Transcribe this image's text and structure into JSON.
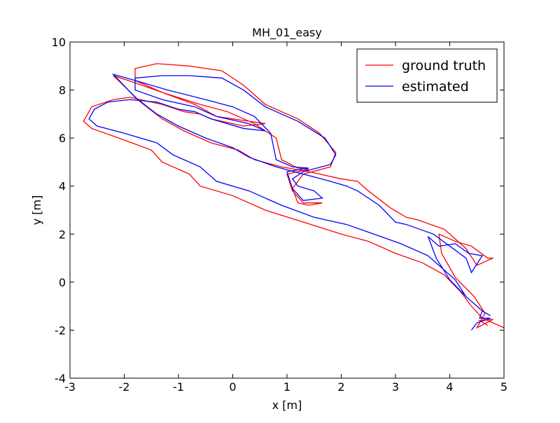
{
  "chart_data": {
    "type": "line",
    "title": "MH_01_easy",
    "x_label": "x [m]",
    "y_label": "y [m]",
    "xlim": [
      -3,
      5
    ],
    "xticks": [
      -3,
      -2,
      -1,
      0,
      1,
      2,
      3,
      4,
      5
    ],
    "ylim": [
      -4,
      10
    ],
    "yticks": [
      -4,
      -2,
      0,
      2,
      4,
      6,
      8,
      10
    ],
    "legend": "upper right",
    "series": [
      {
        "name": "ground truth",
        "color": "#ff0000",
        "x": [
          4.7,
          4.55,
          4.8,
          4.5,
          4.65,
          4.45,
          4.1,
          3.85,
          3.8,
          4.1,
          4.4,
          4.7,
          4.8,
          4.5,
          4.3,
          3.9,
          3.4,
          3.2,
          2.9,
          2.5,
          2.3,
          2.0,
          1.4,
          0.9,
          0.4,
          0.1,
          -0.4,
          -0.9,
          -1.3,
          -1.7,
          -2.2,
          -1.8,
          -1.3,
          -0.6,
          -0.1,
          0.4,
          0.8,
          0.9,
          1.2,
          1.4,
          1.0,
          1.1,
          1.3,
          1.65,
          1.4,
          1.2,
          1.1,
          1.3,
          1.8,
          1.9,
          1.6,
          1.2,
          0.6,
          0.2,
          -0.2,
          -0.8,
          -1.4,
          -1.8,
          -1.8,
          -1.3,
          -0.7,
          -0.3,
          0.3,
          0.6,
          0.2,
          -0.4,
          -0.6,
          -0.9,
          -1.3,
          -1.9,
          -2.2,
          -2.6,
          -2.75,
          -2.6,
          -2.1,
          -1.5,
          -1.3,
          -0.8,
          -0.6,
          0.0,
          0.6,
          1.3,
          2.0,
          2.5,
          3.0,
          3.5,
          3.9,
          4.2,
          4.4,
          4.6,
          5.0
        ],
        "values": [
          -1.8,
          -1.6,
          -1.55,
          -1.9,
          -1.3,
          -0.6,
          0.2,
          1.2,
          2.0,
          1.7,
          1.5,
          1.0,
          1.0,
          0.7,
          1.4,
          2.2,
          2.6,
          2.7,
          3.1,
          3.8,
          4.2,
          4.3,
          4.6,
          4.8,
          5.1,
          5.5,
          5.8,
          6.3,
          6.8,
          7.5,
          8.6,
          8.3,
          7.9,
          7.4,
          7.1,
          6.6,
          6.0,
          5.1,
          4.75,
          4.7,
          4.5,
          3.8,
          3.3,
          3.3,
          3.2,
          3.3,
          3.9,
          4.5,
          4.8,
          5.4,
          6.2,
          6.8,
          7.4,
          8.2,
          8.8,
          9.0,
          9.1,
          8.9,
          8.4,
          7.9,
          7.4,
          6.9,
          6.7,
          6.6,
          6.5,
          6.8,
          7.0,
          7.1,
          7.4,
          7.7,
          7.6,
          7.3,
          6.7,
          6.4,
          6.0,
          5.5,
          5.0,
          4.5,
          4.0,
          3.6,
          3.0,
          2.5,
          2.0,
          1.7,
          1.2,
          0.8,
          0.3,
          -0.4,
          -1.0,
          -1.5,
          -1.9
        ]
      },
      {
        "name": "estimated",
        "color": "#0000ff",
        "x": [
          4.4,
          4.5,
          4.75,
          4.55,
          4.6,
          4.3,
          4.0,
          3.75,
          3.6,
          3.8,
          4.1,
          4.35,
          4.6,
          4.4,
          4.3,
          3.7,
          3.2,
          3.0,
          2.7,
          2.3,
          2.1,
          1.8,
          1.3,
          0.8,
          0.3,
          0.0,
          -0.5,
          -1.0,
          -1.4,
          -1.8,
          -2.2,
          -1.8,
          -1.2,
          -0.5,
          0.0,
          0.4,
          0.7,
          0.8,
          1.1,
          1.4,
          1.0,
          1.1,
          1.3,
          1.65,
          1.5,
          1.2,
          1.1,
          1.3,
          1.8,
          1.9,
          1.7,
          1.2,
          0.6,
          0.2,
          -0.2,
          -0.8,
          -1.3,
          -1.8,
          -1.8,
          -1.3,
          -0.7,
          -0.3,
          0.3,
          0.6,
          0.2,
          -0.4,
          -0.7,
          -1.0,
          -1.4,
          -1.9,
          -2.3,
          -2.55,
          -2.65,
          -2.5,
          -2.0,
          -1.4,
          -1.1,
          -0.6,
          -0.3,
          0.3,
          0.9,
          1.5,
          2.1,
          2.6,
          3.1,
          3.6,
          3.9,
          4.1,
          4.3,
          4.6,
          4.75
        ],
        "values": [
          -2.0,
          -1.7,
          -1.5,
          -1.5,
          -1.2,
          -0.6,
          0.1,
          1.0,
          1.9,
          1.5,
          1.6,
          1.2,
          1.1,
          0.4,
          1.0,
          2.0,
          2.4,
          2.5,
          3.2,
          3.8,
          4.0,
          4.2,
          4.5,
          4.8,
          5.2,
          5.6,
          6.0,
          6.5,
          7.0,
          7.7,
          8.65,
          8.4,
          8.0,
          7.6,
          7.3,
          6.9,
          6.2,
          5.1,
          4.8,
          4.75,
          4.6,
          3.9,
          3.4,
          3.5,
          3.8,
          4.0,
          4.3,
          4.6,
          4.9,
          5.3,
          6.0,
          6.7,
          7.3,
          8.0,
          8.5,
          8.6,
          8.6,
          8.5,
          8.0,
          7.6,
          7.3,
          6.9,
          6.6,
          6.3,
          6.4,
          6.8,
          7.1,
          7.2,
          7.5,
          7.6,
          7.5,
          7.2,
          6.8,
          6.5,
          6.2,
          5.8,
          5.3,
          4.8,
          4.2,
          3.8,
          3.2,
          2.7,
          2.4,
          2.0,
          1.6,
          1.1,
          0.5,
          0.1,
          -0.6,
          -1.2,
          -1.4
        ]
      }
    ]
  }
}
